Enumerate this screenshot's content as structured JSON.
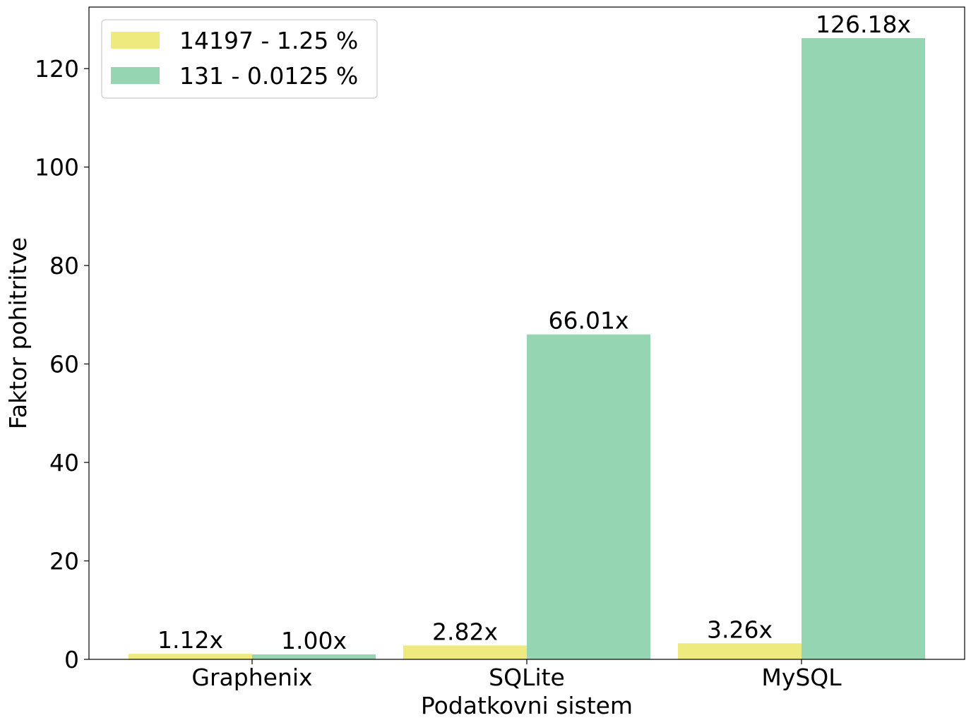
{
  "chart_data": {
    "type": "bar",
    "categories": [
      "Graphenix",
      "SQLite",
      "MySQL"
    ],
    "series": [
      {
        "name": "14197 - 1.25 %",
        "color": "#eeea7e",
        "values": [
          1.12,
          2.82,
          3.26
        ],
        "labels": [
          "1.12x",
          "2.82x",
          "3.26x"
        ]
      },
      {
        "name": "131 - 0.0125 %",
        "color": "#95d5b2",
        "values": [
          1.0,
          66.01,
          126.18
        ],
        "labels": [
          "1.00x",
          "66.01x",
          "126.18x"
        ]
      }
    ],
    "title": "",
    "xlabel": "Podatkovni sistem",
    "ylabel": "Faktor pohitritve",
    "ylim": [
      0,
      132.5
    ],
    "yticks": [
      0,
      20,
      40,
      60,
      80,
      100,
      120
    ],
    "ytick_labels": [
      "0",
      "20",
      "40",
      "60",
      "80",
      "100",
      "120"
    ],
    "grid": false,
    "legend_position": "top-left"
  }
}
